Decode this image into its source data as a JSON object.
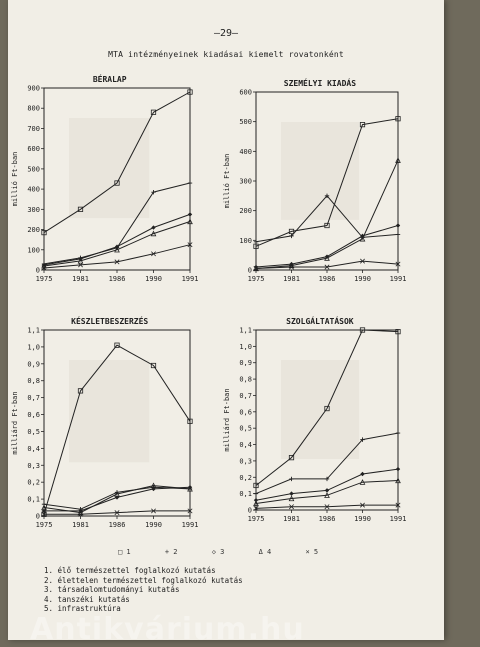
{
  "page": {
    "number": "—29—",
    "title": "MTA intézményeinek kiadásai kiemelt rovatonként",
    "watermark": "Antikvárium.hu"
  },
  "legend": {
    "markers": [
      "□ 1",
      "+ 2",
      "◇ 3",
      "Δ 4",
      "× 5"
    ],
    "items": [
      "1. élő természettel foglalkozó kutatás",
      "2. élettelen természettel foglalkozó kutatás",
      "3. társadalomtudományi kutatás",
      "4. tanszéki kutatás",
      "5. infrastruktúra"
    ]
  },
  "chart_data": [
    {
      "type": "line",
      "title": "BÉRALAP",
      "ylabel": "millió Ft-ban",
      "categories": [
        "1975",
        "1981",
        "1986",
        "1990",
        "1991"
      ],
      "ylim": [
        0,
        900
      ],
      "yticks": [
        "0",
        "100",
        "200",
        "300",
        "400",
        "500",
        "600",
        "700",
        "800",
        "900"
      ],
      "series": [
        {
          "values": [
            185,
            300,
            430,
            780,
            880
          ]
        },
        {
          "values": [
            30,
            60,
            110,
            385,
            430
          ]
        },
        {
          "values": [
            25,
            55,
            115,
            210,
            275
          ]
        },
        {
          "values": [
            20,
            45,
            100,
            180,
            240
          ]
        },
        {
          "values": [
            10,
            25,
            40,
            80,
            125
          ]
        }
      ]
    },
    {
      "type": "line",
      "title": "SZEMÉLYI KIADÁS",
      "ylabel": "millió Ft-ban",
      "categories": [
        "1975",
        "1981",
        "1986",
        "1990",
        "1991"
      ],
      "ylim": [
        0,
        600
      ],
      "yticks": [
        "0",
        "100",
        "200",
        "300",
        "400",
        "500",
        "600"
      ],
      "series": [
        {
          "values": [
            80,
            130,
            150,
            490,
            510
          ]
        },
        {
          "values": [
            95,
            115,
            250,
            110,
            120
          ]
        },
        {
          "values": [
            10,
            20,
            45,
            115,
            150
          ]
        },
        {
          "values": [
            5,
            15,
            40,
            105,
            370
          ]
        },
        {
          "values": [
            5,
            10,
            10,
            30,
            20
          ]
        }
      ]
    },
    {
      "type": "line",
      "title": "KÉSZLETBESZERZÉS",
      "ylabel": "milliárd Ft-ban",
      "categories": [
        "1975",
        "1981",
        "1986",
        "1990",
        "1991"
      ],
      "ylim": [
        0,
        1.1
      ],
      "yticks": [
        "0",
        "0,1",
        "0,2",
        "0,3",
        "0,4",
        "0,5",
        "0,6",
        "0,7",
        "0,8",
        "0,9",
        "1,0",
        "1,1"
      ],
      "series": [
        {
          "values": [
            0.01,
            0.74,
            1.01,
            0.89,
            0.56
          ]
        },
        {
          "values": [
            0.07,
            0.04,
            0.14,
            0.17,
            0.16
          ]
        },
        {
          "values": [
            0.03,
            0.03,
            0.11,
            0.16,
            0.17
          ]
        },
        {
          "values": [
            0.05,
            0.02,
            0.13,
            0.18,
            0.16
          ]
        },
        {
          "values": [
            0.01,
            0.01,
            0.02,
            0.03,
            0.03
          ]
        }
      ]
    },
    {
      "type": "line",
      "title": "SZOLGÁLTATÁSOK",
      "ylabel": "milliárd Ft-ban",
      "categories": [
        "1975",
        "1981",
        "1986",
        "1990",
        "1991"
      ],
      "ylim": [
        0,
        1.1
      ],
      "yticks": [
        "0",
        "0,1",
        "0,2",
        "0,3",
        "0,4",
        "0,5",
        "0,6",
        "0,7",
        "0,8",
        "0,9",
        "1,0",
        "1,1"
      ],
      "series": [
        {
          "values": [
            0.15,
            0.32,
            0.62,
            1.1,
            1.09
          ]
        },
        {
          "values": [
            0.1,
            0.19,
            0.19,
            0.43,
            0.47
          ]
        },
        {
          "values": [
            0.06,
            0.1,
            0.12,
            0.22,
            0.25
          ]
        },
        {
          "values": [
            0.04,
            0.07,
            0.09,
            0.17,
            0.18
          ]
        },
        {
          "values": [
            0.01,
            0.02,
            0.02,
            0.03,
            0.03
          ]
        }
      ]
    }
  ]
}
